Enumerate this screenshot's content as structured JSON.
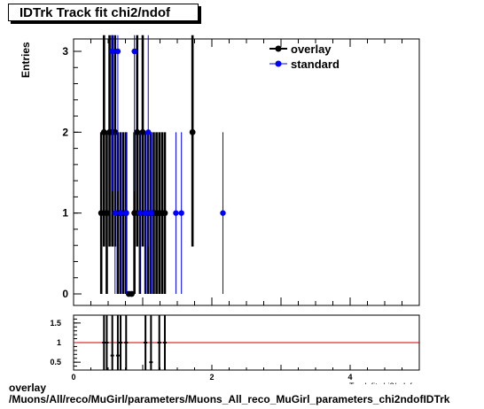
{
  "title": "IDTrk Track fit chi2/ndof",
  "y_axis_label": "Entries",
  "x_axis_label_visible_fragment": "Track fit chi2/ndof",
  "footer": {
    "line1": "overlay",
    "line2": "/Muons/All/reco/MuGirl/parameters/Muons_All_reco_MuGirl_parameters_chi2ndofIDTrk"
  },
  "colors": {
    "overlay": "#000000",
    "standard": "#0000ff",
    "ratio_line": "#cc0000"
  },
  "chart_data": [
    {
      "type": "scatter",
      "panel": "main",
      "xlim": [
        0,
        5
      ],
      "ylim": [
        0,
        3
      ],
      "y_ticks": [
        "0",
        "1",
        "2",
        "3"
      ],
      "error_bars": "sqrt(N)",
      "legend": {
        "position": "top-right",
        "entries": [
          "overlay",
          "standard"
        ]
      },
      "series": [
        {
          "name": "overlay",
          "x": [
            0.4,
            0.44,
            0.48,
            0.52,
            0.56,
            0.6,
            0.64,
            0.68,
            0.72,
            0.76,
            0.8,
            0.84,
            0.88,
            0.92,
            0.96,
            1.0,
            1.04,
            1.08,
            1.12,
            1.16,
            1.2,
            1.24,
            1.28,
            1.32,
            1.72
          ],
          "y": [
            1,
            2,
            1,
            2,
            2,
            2,
            1,
            1,
            1,
            1,
            0,
            0,
            1,
            2,
            1,
            2,
            1,
            1,
            1,
            1,
            1,
            1,
            1,
            1,
            2
          ]
        },
        {
          "name": "standard",
          "x": [
            0.56,
            0.6,
            0.64,
            0.68,
            0.76,
            0.88,
            0.96,
            1.04,
            1.08,
            1.12,
            1.48,
            1.56,
            2.16
          ],
          "y": [
            3,
            1,
            3,
            1,
            1,
            3,
            1,
            1,
            2,
            1,
            1,
            1,
            1
          ]
        }
      ]
    },
    {
      "type": "scatter",
      "panel": "ratio",
      "xlim": [
        0,
        5
      ],
      "ylim": [
        0.3,
        1.7
      ],
      "x_ticks": [
        "0",
        "2",
        "4"
      ],
      "y_ticks": [
        "0.5",
        "1",
        "1.5"
      ],
      "reference_line": 1,
      "series": [
        {
          "name": "",
          "x": [
            0.44,
            0.48,
            0.56,
            0.64,
            0.68,
            0.76,
            1.04,
            1.12,
            1.24,
            1.32
          ],
          "y": [
            1,
            1,
            0.67,
            0.67,
            1,
            1,
            1,
            0.5,
            1,
            1
          ]
        }
      ]
    }
  ]
}
